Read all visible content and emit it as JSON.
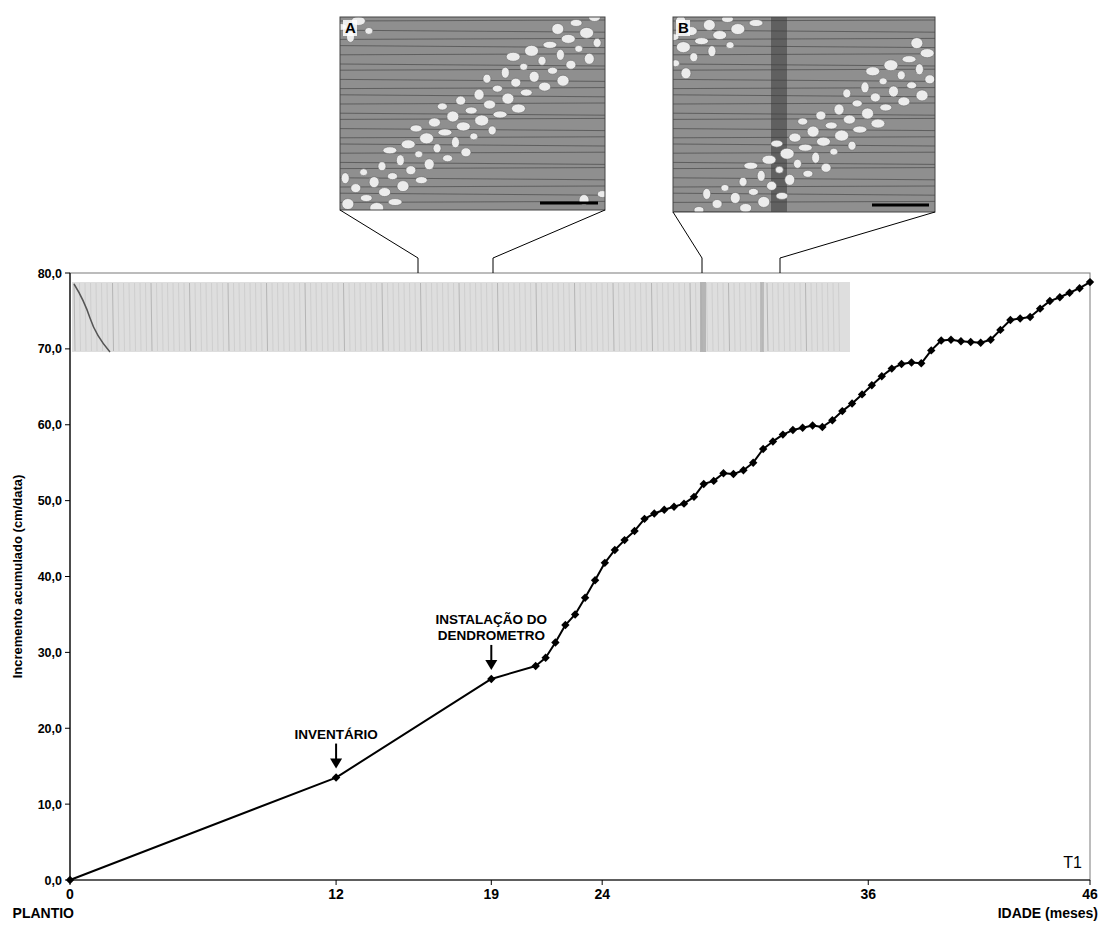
{
  "chart_data": {
    "type": "line",
    "x": [
      0,
      12,
      19,
      21.0,
      21.45,
      21.89,
      22.34,
      22.78,
      23.23,
      23.68,
      24.12,
      24.57,
      25.01,
      25.46,
      25.91,
      26.35,
      26.8,
      27.24,
      27.69,
      28.14,
      28.58,
      29.03,
      29.47,
      29.92,
      30.37,
      30.81,
      31.26,
      31.7,
      32.15,
      32.6,
      33.04,
      33.49,
      33.93,
      34.38,
      34.83,
      35.27,
      35.72,
      36.16,
      36.61,
      37.06,
      37.5,
      37.95,
      38.39,
      38.84,
      39.29,
      39.73,
      40.18,
      40.62,
      41.07,
      41.52,
      41.96,
      42.41,
      42.85,
      43.3,
      43.75,
      44.19,
      44.64,
      45.08,
      45.53,
      46.0
    ],
    "values": [
      0,
      13.5,
      26.5,
      28.2,
      29.3,
      31.3,
      33.6,
      35.0,
      37.2,
      39.5,
      41.8,
      43.5,
      44.8,
      46.0,
      47.6,
      48.3,
      48.8,
      49.2,
      49.6,
      50.5,
      52.2,
      52.6,
      53.6,
      53.5,
      54.0,
      55.0,
      56.8,
      57.8,
      58.7,
      59.3,
      59.6,
      59.9,
      59.7,
      60.6,
      61.8,
      62.8,
      64.0,
      65.2,
      66.4,
      67.4,
      68.0,
      68.2,
      68.1,
      69.8,
      71.1,
      71.2,
      71.0,
      70.9,
      70.8,
      71.2,
      72.5,
      73.8,
      74.0,
      74.2,
      75.3,
      76.3,
      76.8,
      77.4,
      78.0,
      78.8
    ],
    "color": "#000000",
    "marker": "diamond",
    "grid": false,
    "xlim": [
      0,
      46
    ],
    "ylim": [
      0,
      80
    ],
    "xticks": [
      0,
      12,
      19,
      24,
      36,
      46
    ],
    "yticks": [
      {
        "value": 0,
        "label": "0,0"
      },
      {
        "value": 10,
        "label": "10,0"
      },
      {
        "value": 20,
        "label": "20,0"
      },
      {
        "value": 30,
        "label": "30,0"
      },
      {
        "value": 40,
        "label": "40,0"
      },
      {
        "value": 50,
        "label": "50,0"
      },
      {
        "value": 60,
        "label": "60,0"
      },
      {
        "value": 70,
        "label": "70,0"
      },
      {
        "value": 80,
        "label": "80,0"
      }
    ],
    "ylabel": "Incremento acumulado (cm/data)",
    "xlabel": "IDADE (meses)",
    "annotations": [
      {
        "text": "INVENTÁRIO",
        "x": 12,
        "y": 13.5
      },
      {
        "text": "INSTALAÇÃO DO DENDROMETRO",
        "x": 19,
        "y": 26.5
      },
      {
        "text": "PLANTIO",
        "x": 0
      },
      {
        "text": "T1"
      }
    ],
    "panels": [
      {
        "label": "A"
      },
      {
        "label": "B"
      }
    ]
  }
}
